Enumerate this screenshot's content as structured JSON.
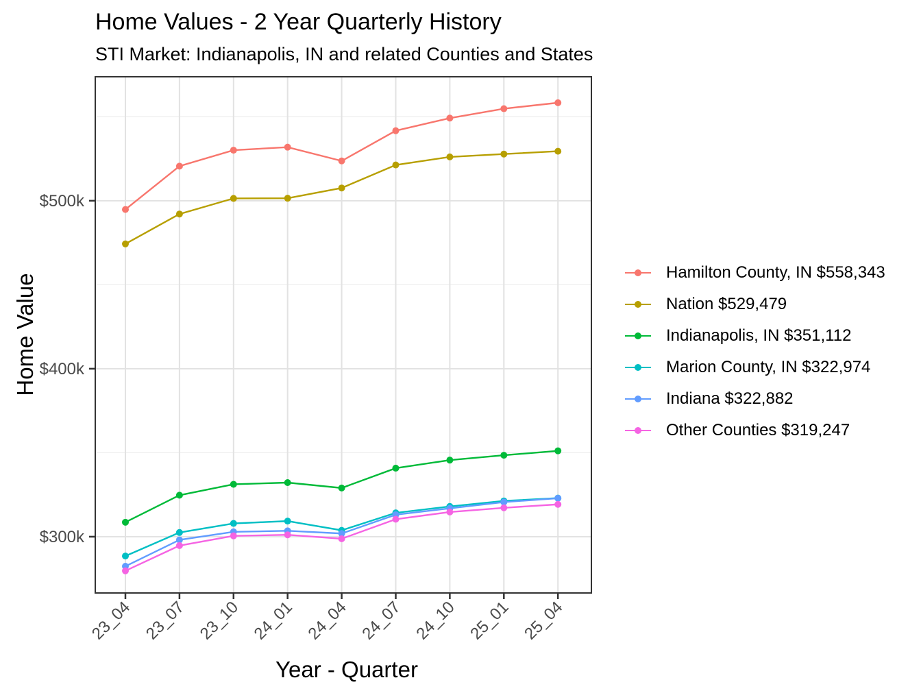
{
  "chart_data": {
    "type": "line",
    "title": "Home Values - 2 Year Quarterly History",
    "subtitle": "STI Market: Indianapolis, IN and related Counties and States",
    "xlabel": "Year - Quarter",
    "ylabel": "Home Value",
    "categories": [
      "23_04",
      "23_07",
      "23_10",
      "24_01",
      "24_04",
      "24_07",
      "24_10",
      "25_01",
      "25_04"
    ],
    "series": [
      {
        "name": "Hamilton County, IN",
        "legend_label": "Hamilton County, IN $558,343",
        "color": "#F8766D",
        "values": [
          494800,
          520600,
          530100,
          531900,
          523700,
          541700,
          549200,
          554800,
          558343
        ]
      },
      {
        "name": "Nation",
        "legend_label": "Nation $529,479",
        "color": "#B79F00",
        "values": [
          474300,
          492100,
          501400,
          501500,
          507600,
          521300,
          526100,
          527800,
          529479
        ]
      },
      {
        "name": "Indianapolis, IN",
        "legend_label": "Indianapolis, IN $351,112",
        "color": "#00BA38",
        "values": [
          308600,
          324700,
          331200,
          332200,
          329000,
          340800,
          345600,
          348500,
          351112
        ]
      },
      {
        "name": "Marion County, IN",
        "legend_label": "Marion County, IN $322,974",
        "color": "#00BFC4",
        "values": [
          288500,
          302500,
          307900,
          309300,
          303800,
          314200,
          318000,
          321300,
          322974
        ]
      },
      {
        "name": "Indiana",
        "legend_label": "Indiana $322,882",
        "color": "#619CFF",
        "values": [
          282400,
          298100,
          302900,
          303500,
          301900,
          313100,
          316900,
          320600,
          322882
        ]
      },
      {
        "name": "Other Counties",
        "legend_label": "Other Counties $319,247",
        "color": "#F564E3",
        "values": [
          279700,
          294700,
          300500,
          301100,
          298800,
          310400,
          314700,
          317200,
          319247
        ]
      }
    ],
    "y_axis": {
      "ticks": [
        {
          "label": "$300k",
          "value": 300000
        },
        {
          "label": "$400k",
          "value": 400000
        },
        {
          "label": "$500k",
          "value": 500000
        }
      ],
      "minor_tick_values": [
        350000,
        450000,
        550000
      ],
      "range": [
        266500,
        573800
      ]
    },
    "legend_position": "right",
    "grid": true,
    "colors": {
      "panel_border": "#333333",
      "grid_major": "#E2E2E2",
      "grid_minor": "#EFEFEF",
      "tick_mark": "#333333",
      "tick_label": "#4A4A4A",
      "text": "#000000",
      "background": "#FFFFFF"
    }
  }
}
